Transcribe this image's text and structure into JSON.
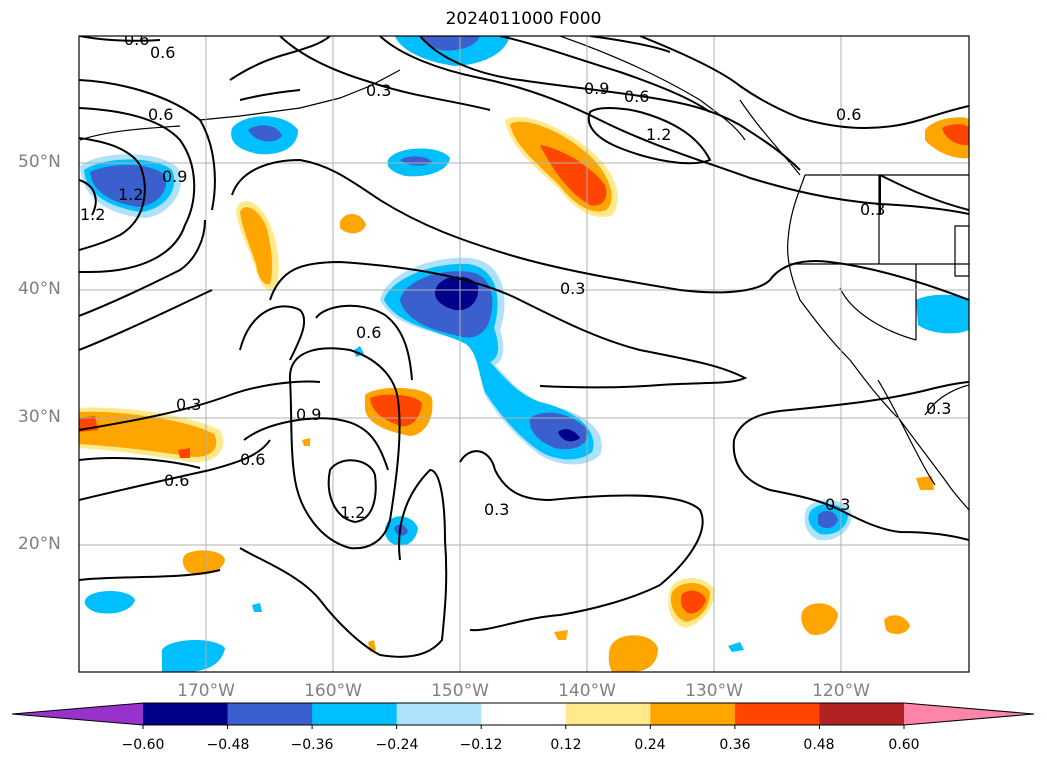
{
  "title": "2024011000 F000",
  "lat_labels": [
    "50°N",
    "40°N",
    "30°N",
    "20°N"
  ],
  "lon_labels": [
    "170°W",
    "160°W",
    "150°W",
    "140°W",
    "130°W",
    "120°W"
  ],
  "contour_labels": [
    "0.6",
    "0.3",
    "0.6",
    "0.9",
    "0.6",
    "1.2",
    "0.6",
    "1.2",
    "0.9",
    "1.2",
    "0.3",
    "0.3",
    "0.6",
    "0.9",
    "0.6",
    "1.2",
    "0.3",
    "0.6",
    "0.3",
    "0.3",
    "0.6",
    "0.3"
  ],
  "colorbar": {
    "ticks": [
      "−0.60",
      "−0.48",
      "−0.36",
      "−0.24",
      "−0.12",
      "0.12",
      "0.24",
      "0.36",
      "0.48",
      "0.60"
    ],
    "colors": [
      "#9932cc",
      "#00008b",
      "#3b5fcd",
      "#00bfff",
      "#aee1fa",
      "#ffffff",
      "#ffe98a",
      "#ffa500",
      "#ff4500",
      "#b22222",
      "#ff85a8"
    ]
  }
}
